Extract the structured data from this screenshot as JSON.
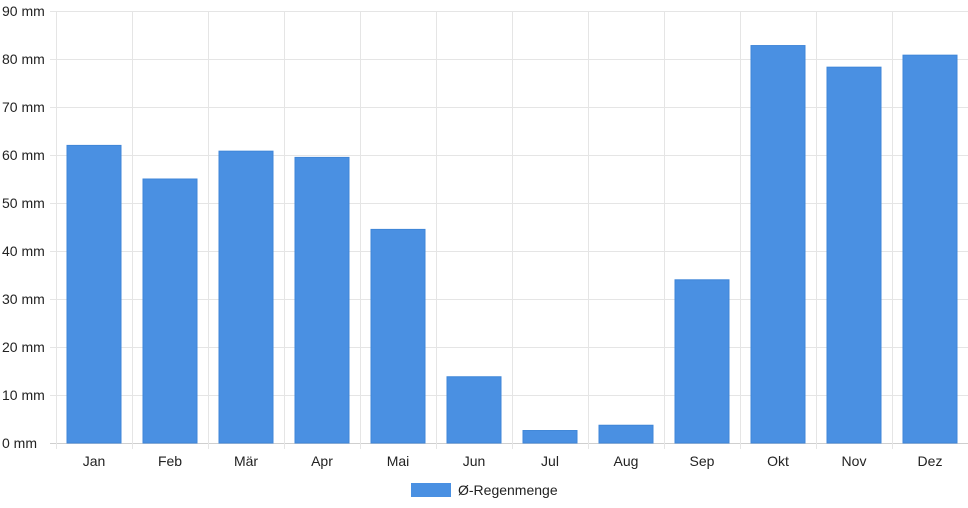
{
  "chart_data": {
    "type": "bar",
    "categories": [
      "Jan",
      "Feb",
      "Mär",
      "Apr",
      "Mai",
      "Jun",
      "Jul",
      "Aug",
      "Sep",
      "Okt",
      "Nov",
      "Dez"
    ],
    "series": [
      {
        "name": "Ø-Regenmenge",
        "values": [
          62,
          55,
          60.8,
          59.5,
          44.5,
          13.8,
          2.6,
          3.7,
          34,
          82.8,
          78.3,
          80.8
        ],
        "color": "#4a90e2"
      }
    ],
    "ylim": [
      0,
      90
    ],
    "yticks": [
      0,
      10,
      20,
      30,
      40,
      50,
      60,
      70,
      80,
      90
    ],
    "ytick_suffix": " mm",
    "grid": true,
    "legend_position": "bottom"
  }
}
